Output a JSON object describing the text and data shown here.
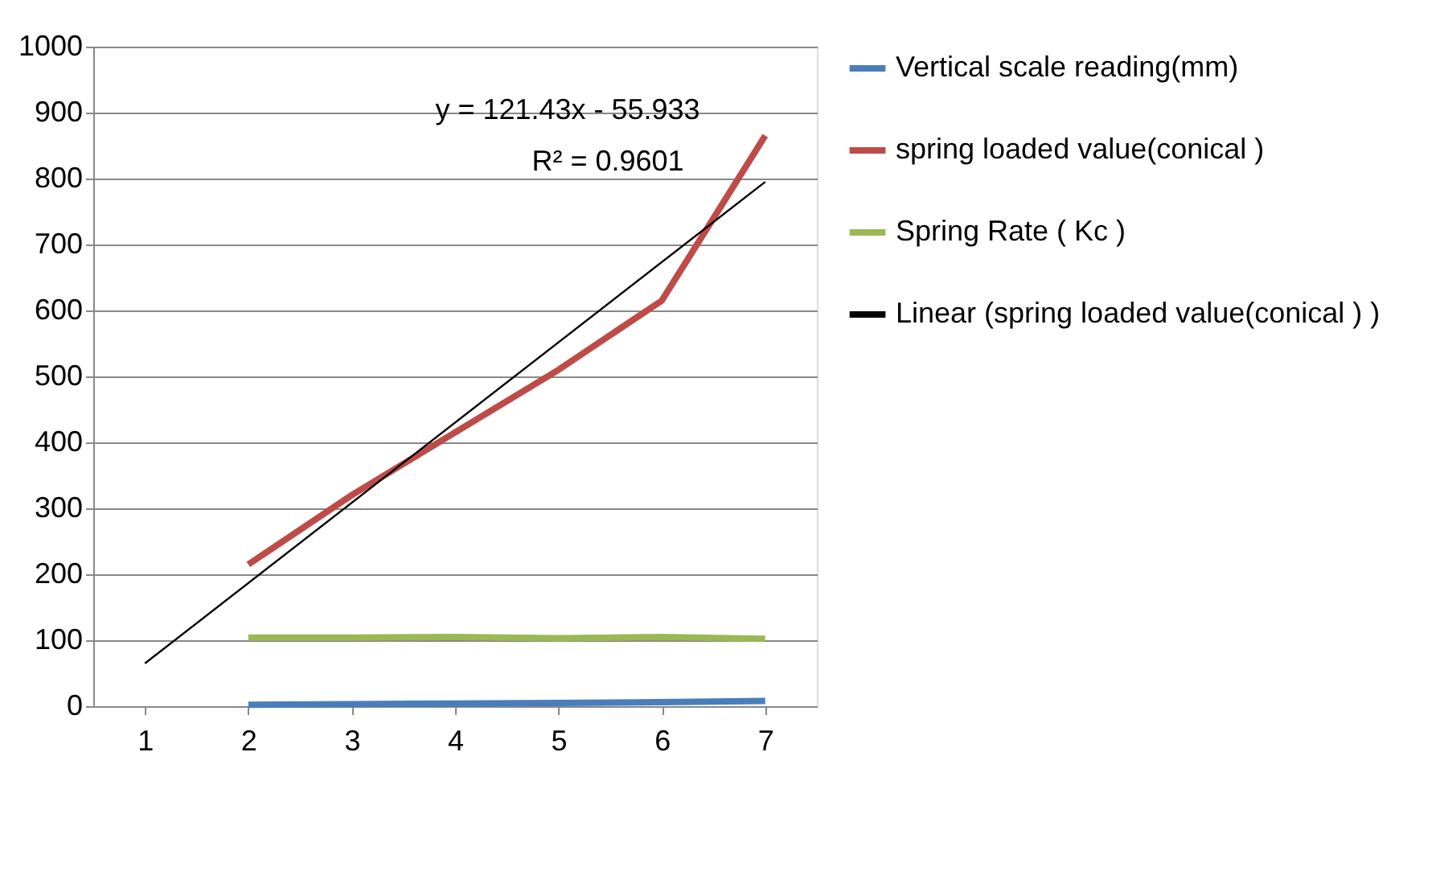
{
  "chart_data": {
    "type": "line",
    "categories": [
      "1",
      "2",
      "3",
      "4",
      "5",
      "6",
      "7"
    ],
    "series": [
      {
        "name": "Vertical scale reading(mm)",
        "color": "#4a7ebb",
        "values": [
          null,
          2,
          3,
          4,
          5,
          6,
          8
        ]
      },
      {
        "name": "spring loaded value(conical )",
        "color": "#be4b48",
        "values": [
          null,
          215,
          320,
          415,
          510,
          615,
          865
        ]
      },
      {
        "name": "Spring Rate      ( Kc )",
        "color": "#98b954",
        "values": [
          null,
          104,
          104,
          105,
          103,
          105,
          102
        ]
      },
      {
        "name": "Linear (spring loaded value(conical ) )",
        "color": "#000000",
        "x": [
          "1",
          "7"
        ],
        "values": [
          65,
          795
        ]
      }
    ],
    "ylim": [
      0,
      1000
    ],
    "yticks": [
      0,
      100,
      200,
      300,
      400,
      500,
      600,
      700,
      800,
      900,
      1000
    ],
    "grid": "y",
    "legend": "right",
    "annotations": [
      "y = 121.43x - 55.933",
      "R² = 0.9601"
    ]
  }
}
